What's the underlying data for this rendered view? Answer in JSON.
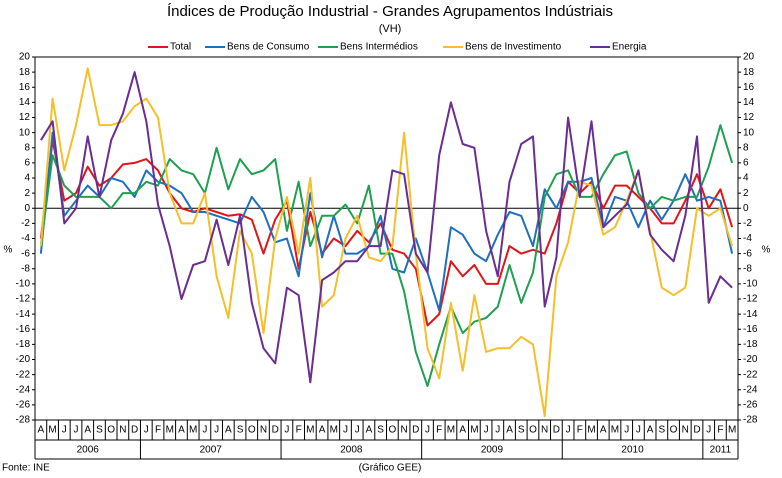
{
  "chart_data": {
    "type": "line",
    "title": "Índices de Produção Industrial - Grandes Agrupamentos Indústriais",
    "subtitle": "(VH)",
    "ylabel": "%",
    "y2label": "%",
    "source": "Fonte: INE",
    "note": "(Gráfico GEE)",
    "categories": [
      "A",
      "M",
      "J",
      "J",
      "A",
      "S",
      "O",
      "N",
      "D",
      "J",
      "F",
      "M",
      "A",
      "M",
      "J",
      "J",
      "A",
      "S",
      "O",
      "N",
      "D",
      "J",
      "F",
      "M",
      "A",
      "M",
      "J",
      "J",
      "A",
      "S",
      "O",
      "N",
      "D",
      "J",
      "F",
      "M",
      "A",
      "M",
      "J",
      "J",
      "A",
      "S",
      "O",
      "N",
      "D",
      "J",
      "F",
      "M",
      "A",
      "M",
      "J",
      "J",
      "A",
      "S",
      "O",
      "N",
      "D",
      "J",
      "F",
      "M"
    ],
    "years": [
      "2006",
      "2007",
      "2008",
      "2009",
      "2010",
      "2011"
    ],
    "ylim": [
      -28,
      20
    ],
    "yticks": [
      -28,
      -26,
      -24,
      -22,
      -20,
      -18,
      -16,
      -14,
      -12,
      -10,
      -8,
      -6,
      -4,
      -2,
      0,
      2,
      4,
      6,
      8,
      10,
      12,
      14,
      16,
      18,
      20
    ],
    "y2lim": [
      -28,
      20
    ],
    "y2ticks": [
      -28,
      -26,
      -24,
      -22,
      -20,
      -18,
      -16,
      -14,
      -12,
      -10,
      -8,
      -6,
      -4,
      -2,
      0,
      2,
      4,
      6,
      8,
      10,
      12,
      14,
      16,
      18,
      20
    ],
    "grid": false,
    "series": [
      {
        "name": "Total",
        "color": "#e0151b",
        "values": [
          -4,
          9,
          1,
          2,
          5.5,
          3,
          4,
          5.8,
          6,
          6.5,
          5,
          2,
          0,
          -0.5,
          0,
          -0.5,
          -1,
          -0.8,
          -1.5,
          -6,
          -1.5,
          1,
          -8,
          -0.5,
          -6,
          -4,
          -5,
          -3,
          -4.5,
          -2,
          -5.5,
          -6,
          -8,
          -15.5,
          -14,
          -7,
          -9,
          -7.5,
          -10,
          -10,
          -5,
          -6,
          -5.5,
          -6,
          -2,
          3.5,
          2,
          3.5,
          0,
          3,
          3,
          1.5,
          0,
          -2,
          -2,
          1,
          4.5,
          0,
          2.5,
          -2.5
        ]
      },
      {
        "name": "Bens de Consumo",
        "color": "#1f6fbf",
        "values": [
          -6,
          10,
          -1,
          1,
          3,
          1.5,
          4,
          3.5,
          1.5,
          5,
          3.5,
          3,
          2,
          -0.5,
          -0.5,
          -1,
          -1.5,
          -2,
          1.5,
          -0.5,
          -4.5,
          -4,
          -9,
          2,
          -6.5,
          -1,
          -6,
          -6,
          -5,
          -1,
          -8,
          -8.5,
          -4,
          -8.5,
          -13.5,
          -2.5,
          -3.5,
          -6,
          -7,
          -3.5,
          -0.5,
          -1,
          -5,
          2.5,
          0,
          3.5,
          3.5,
          4,
          -2.5,
          1.5,
          1,
          -2.5,
          1,
          -1.5,
          1,
          4.5,
          1,
          1.5,
          1,
          -6
        ]
      },
      {
        "name": "Bens Intermédios",
        "color": "#1ea050",
        "values": [
          -5,
          7,
          3,
          1.5,
          1.5,
          1.5,
          0,
          2,
          2,
          3.5,
          3,
          6.5,
          5,
          4.5,
          2,
          8,
          2.5,
          6.5,
          4.5,
          5,
          6.5,
          -3,
          3.5,
          -5,
          -1,
          -1,
          0.5,
          -2,
          3,
          -6,
          -6,
          -11,
          -19,
          -23.5,
          -18,
          -13,
          -16.5,
          -15,
          -14.5,
          -13,
          -7.5,
          -12.5,
          -8.5,
          1.5,
          4.5,
          5,
          1.5,
          1.5,
          4.5,
          7,
          7.5,
          2,
          0,
          1.5,
          1,
          1.5,
          1.5,
          5.5,
          11,
          6
        ]
      },
      {
        "name": "Bens de Investimento",
        "color": "#f5bf2a",
        "values": [
          -5,
          14.5,
          5,
          11,
          18.5,
          11,
          11,
          11.5,
          13.5,
          14.5,
          12,
          2,
          -2,
          -2,
          2,
          -9,
          -14.5,
          -3,
          -6,
          -16.5,
          -4,
          1.5,
          -6,
          4,
          -13,
          -11.5,
          -4,
          -1,
          -6.5,
          -7,
          -5,
          10,
          -6,
          -18.5,
          -22.5,
          -12.5,
          -21.5,
          -11.5,
          -19,
          -18.5,
          -18.5,
          -17,
          -18,
          -27.5,
          -9,
          -4.5,
          3.5,
          3,
          -3.5,
          -2.5,
          1,
          5,
          -3,
          -10.5,
          -11.5,
          -10.5,
          0,
          -1,
          0,
          -5
        ]
      },
      {
        "name": "Energia",
        "color": "#6a2d91",
        "values": [
          9,
          11.5,
          -2,
          0,
          9.5,
          1.5,
          9,
          12.5,
          18,
          11.5,
          0.5,
          -5,
          -12,
          -7.5,
          -7,
          -1.5,
          -7.5,
          -1,
          -12.5,
          -18.5,
          -20.5,
          -10.5,
          -11.5,
          -23,
          -9.5,
          -8.5,
          -7,
          -7,
          -5,
          -5,
          5,
          4.5,
          -6,
          -8.5,
          7,
          14,
          8.5,
          8,
          -3,
          -9,
          3.5,
          8.5,
          9.5,
          -13,
          -6.5,
          12,
          1.5,
          11.5,
          -2.5,
          -1,
          0.5,
          5,
          -3.5,
          -5.5,
          -7,
          -1,
          9.5,
          -12.5,
          -9,
          -10.5
        ]
      }
    ]
  }
}
